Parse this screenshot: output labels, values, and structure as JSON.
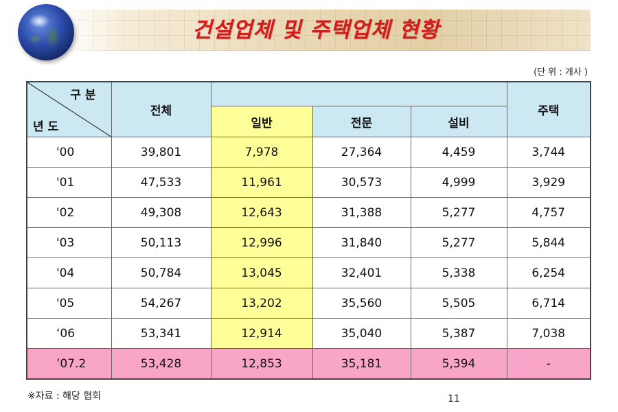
{
  "title": "건설업체 및 주택업체 현황",
  "unit_note": "(단 위 : 개사 )",
  "header": {
    "corner_top": "구 분",
    "corner_bottom": "년 도",
    "total": "전체",
    "general": "일반",
    "specialty": "전문",
    "facility": "설비",
    "housing": "주택"
  },
  "rows": [
    {
      "year": "'00",
      "total": "39,801",
      "general": "7,978",
      "specialty": "27,364",
      "facility": "4,459",
      "housing": "3,744"
    },
    {
      "year": "'01",
      "total": "47,533",
      "general": "11,961",
      "specialty": "30,573",
      "facility": "4,999",
      "housing": "3,929"
    },
    {
      "year": "'02",
      "total": "49,308",
      "general": "12,643",
      "specialty": "31,388",
      "facility": "5,277",
      "housing": "4,757"
    },
    {
      "year": "'03",
      "total": "50,113",
      "general": "12,996",
      "specialty": "31,840",
      "facility": "5,277",
      "housing": "5,844"
    },
    {
      "year": "'04",
      "total": "50,784",
      "general": "13,045",
      "specialty": "32,401",
      "facility": "5,338",
      "housing": "6,254"
    },
    {
      "year": "'05",
      "total": "54,267",
      "general": "13,202",
      "specialty": "35,560",
      "facility": "5,505",
      "housing": "6,714"
    },
    {
      "year": "‘06",
      "total": "53,341",
      "general": "12,914",
      "specialty": "35,040",
      "facility": "5,387",
      "housing": "7,038"
    },
    {
      "year": "’07.2",
      "total": "53,428",
      "general": "12,853",
      "specialty": "35,181",
      "facility": "5,394",
      "housing": "-"
    }
  ],
  "source_note": "※자료 : 해당 협회",
  "page_number": "11",
  "colors": {
    "title": "#d21c1c",
    "header_bg": "#cce8f2",
    "highlight_column": "#ffff9a",
    "last_row": "#f8a5c8"
  },
  "icons": [
    "globe-icon"
  ]
}
